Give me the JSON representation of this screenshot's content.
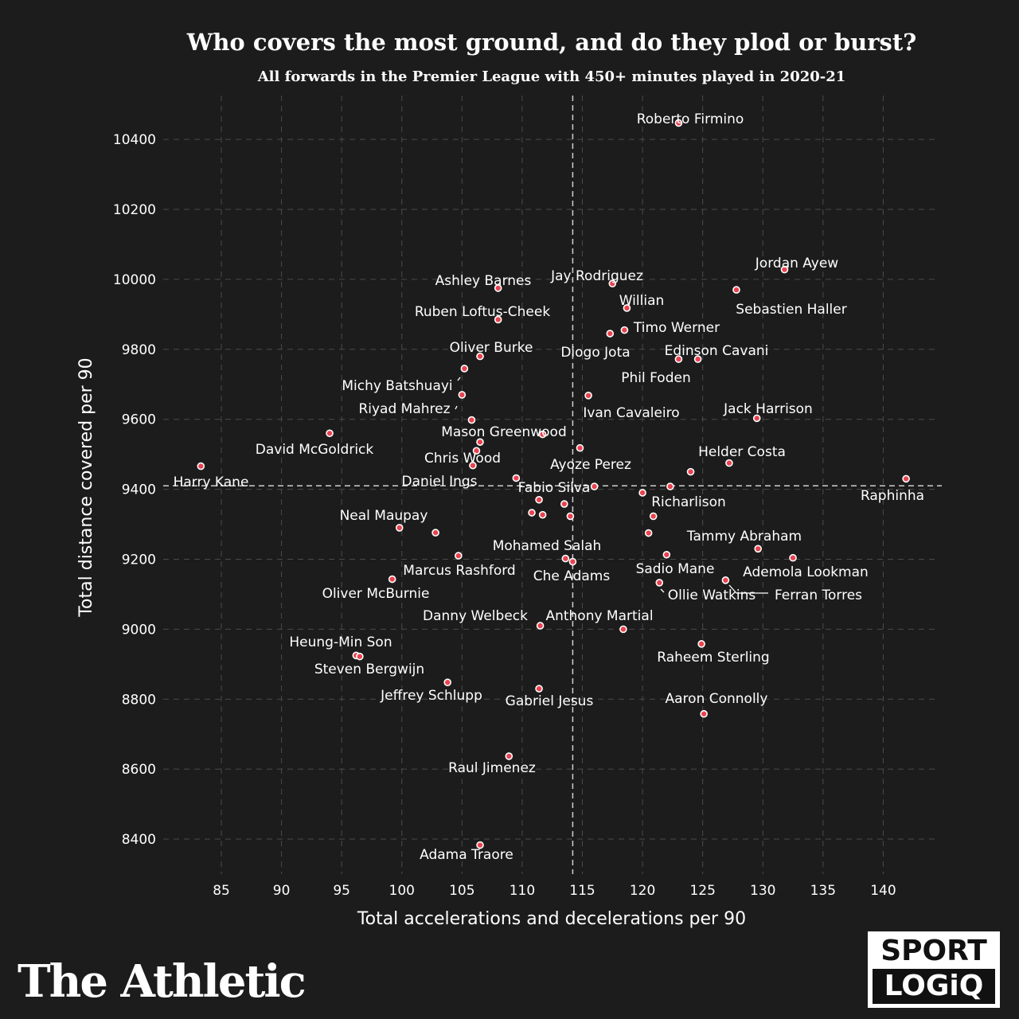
{
  "colors": {
    "background": "#1c1c1c",
    "point_fill": "#e8434f",
    "point_stroke": "#ffffff",
    "text": "#ffffff"
  },
  "brand": {
    "athletic_logo": "The Athletic",
    "sportlogiq_line1": "SPORT",
    "sportlogiq_line2": "LOGiQ"
  },
  "chart_data": {
    "type": "scatter",
    "title": "Who covers the most ground, and do they plod or burst?",
    "subtitle": "All forwards in the Premier League with 450+ minutes played in 2020-21",
    "xlabel": "Total accelerations and decelerations per 90",
    "ylabel": "Total distance covered per 90",
    "xlim": [
      80.5,
      145
    ],
    "ylim": [
      8300,
      10530
    ],
    "xticks": [
      85,
      90,
      95,
      100,
      105,
      110,
      115,
      120,
      125,
      130,
      135,
      140
    ],
    "yticks": [
      8400,
      8600,
      8800,
      9000,
      9200,
      9400,
      9600,
      9800,
      10000,
      10200,
      10400
    ],
    "grid": true,
    "reference_lines": {
      "x": 114.2,
      "y": 9410
    },
    "points": [
      {
        "x": 123.0,
        "y": 10447
      },
      {
        "x": 131.8,
        "y": 10028
      },
      {
        "x": 127.8,
        "y": 9970
      },
      {
        "x": 108.0,
        "y": 9975
      },
      {
        "x": 117.5,
        "y": 9988
      },
      {
        "x": 118.7,
        "y": 9918
      },
      {
        "x": 108.0,
        "y": 9885
      },
      {
        "x": 118.5,
        "y": 9855
      },
      {
        "x": 117.3,
        "y": 9845
      },
      {
        "x": 106.5,
        "y": 9780
      },
      {
        "x": 123.0,
        "y": 9772
      },
      {
        "x": 124.6,
        "y": 9772
      },
      {
        "x": 105.2,
        "y": 9745
      },
      {
        "x": 105.0,
        "y": 9670
      },
      {
        "x": 115.5,
        "y": 9668
      },
      {
        "x": 129.5,
        "y": 9603
      },
      {
        "x": 105.8,
        "y": 9598
      },
      {
        "x": 94.0,
        "y": 9560
      },
      {
        "x": 111.7,
        "y": 9557
      },
      {
        "x": 106.5,
        "y": 9535
      },
      {
        "x": 114.8,
        "y": 9518
      },
      {
        "x": 106.2,
        "y": 9510
      },
      {
        "x": 127.2,
        "y": 9475
      },
      {
        "x": 83.3,
        "y": 9466
      },
      {
        "x": 105.9,
        "y": 9468
      },
      {
        "x": 124.0,
        "y": 9450
      },
      {
        "x": 109.5,
        "y": 9432
      },
      {
        "x": 141.9,
        "y": 9430
      },
      {
        "x": 116.0,
        "y": 9408
      },
      {
        "x": 122.3,
        "y": 9408
      },
      {
        "x": 120.0,
        "y": 9390
      },
      {
        "x": 111.4,
        "y": 9370
      },
      {
        "x": 113.5,
        "y": 9358
      },
      {
        "x": 110.8,
        "y": 9333
      },
      {
        "x": 111.7,
        "y": 9327
      },
      {
        "x": 114.0,
        "y": 9323
      },
      {
        "x": 120.9,
        "y": 9323
      },
      {
        "x": 99.8,
        "y": 9290
      },
      {
        "x": 102.8,
        "y": 9276
      },
      {
        "x": 120.5,
        "y": 9275
      },
      {
        "x": 129.6,
        "y": 9230
      },
      {
        "x": 104.7,
        "y": 9210
      },
      {
        "x": 122.0,
        "y": 9213
      },
      {
        "x": 132.5,
        "y": 9204
      },
      {
        "x": 113.6,
        "y": 9202
      },
      {
        "x": 114.2,
        "y": 9193
      },
      {
        "x": 99.2,
        "y": 9143
      },
      {
        "x": 126.9,
        "y": 9140
      },
      {
        "x": 121.4,
        "y": 9133
      },
      {
        "x": 111.5,
        "y": 9010
      },
      {
        "x": 118.4,
        "y": 9000
      },
      {
        "x": 124.9,
        "y": 8958
      },
      {
        "x": 96.2,
        "y": 8925
      },
      {
        "x": 96.5,
        "y": 8922
      },
      {
        "x": 103.8,
        "y": 8848
      },
      {
        "x": 111.4,
        "y": 8830
      },
      {
        "x": 125.1,
        "y": 8758
      },
      {
        "x": 108.9,
        "y": 8637
      },
      {
        "x": 106.5,
        "y": 8383
      }
    ],
    "labels": [
      "Roberto Firmino",
      "Jordan Ayew",
      "Sebastien Haller",
      "Ashley Barnes",
      "Jay Rodriguez",
      "Willian",
      "Ruben Loftus-Cheek",
      "Timo Werner",
      "Oliver Burke",
      "Diogo Jota",
      "Edinson Cavani",
      "Phil Foden",
      "Michy Batshuayi",
      "Riyad Mahrez",
      "Ivan Cavaleiro",
      "Jack Harrison",
      "Mason Greenwood",
      "David McGoldrick",
      "Helder Costa",
      "Chris Wood",
      "Ayoze Perez",
      "Harry Kane",
      "Daniel Ings",
      "Fabio Silva",
      "Raphinha",
      "Richarlison",
      "Neal Maupay",
      "Tammy Abraham",
      "Mohamed Salah",
      "Marcus Rashford",
      "Ademola Lookman",
      "Sadio Mane",
      "Che Adams",
      "Oliver McBurnie",
      "Ollie Watkins",
      "Ferran Torres",
      "Danny Welbeck",
      "Anthony Martial",
      "Heung-Min Son",
      "Raheem Sterling",
      "Steven Bergwijn",
      "Jeffrey Schlupp",
      "Gabriel Jesus",
      "Aaron Connolly",
      "Raul Jimenez",
      "Adama Traore"
    ]
  }
}
